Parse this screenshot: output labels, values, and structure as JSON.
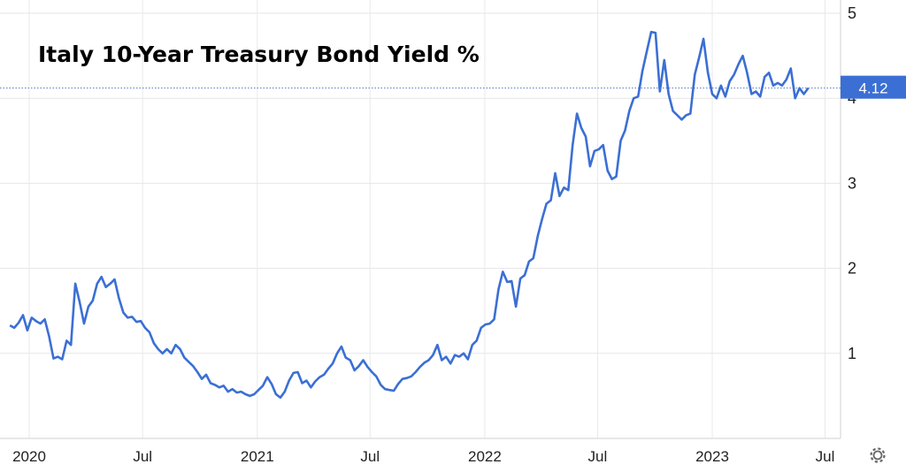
{
  "chart_data": {
    "type": "line",
    "title": "Italy 10-Year Treasury Bond Yield %",
    "xlabel": "",
    "ylabel": "",
    "x_ticks": [
      "2020",
      "Jul",
      "2021",
      "Jul",
      "2022",
      "Jul",
      "2023",
      "Jul"
    ],
    "y_ticks": [
      "1",
      "2",
      "3",
      "4",
      "5"
    ],
    "ylim": [
      0,
      5.1
    ],
    "grid": true,
    "last_value_label": "4.12",
    "series": [
      {
        "color": "#3b6fd4",
        "points": [
          [
            "2019-12-01",
            1.33
          ],
          [
            "2019-12-08",
            1.3
          ],
          [
            "2019-12-15",
            1.36
          ],
          [
            "2019-12-22",
            1.45
          ],
          [
            "2019-12-29",
            1.27
          ],
          [
            "2020-01-05",
            1.42
          ],
          [
            "2020-01-12",
            1.38
          ],
          [
            "2020-01-19",
            1.35
          ],
          [
            "2020-01-26",
            1.4
          ],
          [
            "2020-02-02",
            1.2
          ],
          [
            "2020-02-09",
            0.94
          ],
          [
            "2020-02-16",
            0.96
          ],
          [
            "2020-02-23",
            0.93
          ],
          [
            "2020-03-01",
            1.15
          ],
          [
            "2020-03-08",
            1.1
          ],
          [
            "2020-03-15",
            1.82
          ],
          [
            "2020-03-22",
            1.6
          ],
          [
            "2020-03-29",
            1.35
          ],
          [
            "2020-04-05",
            1.55
          ],
          [
            "2020-04-12",
            1.62
          ],
          [
            "2020-04-19",
            1.82
          ],
          [
            "2020-04-26",
            1.9
          ],
          [
            "2020-05-03",
            1.78
          ],
          [
            "2020-05-10",
            1.82
          ],
          [
            "2020-05-17",
            1.87
          ],
          [
            "2020-05-24",
            1.65
          ],
          [
            "2020-05-31",
            1.48
          ],
          [
            "2020-06-07",
            1.42
          ],
          [
            "2020-06-14",
            1.43
          ],
          [
            "2020-06-21",
            1.37
          ],
          [
            "2020-06-28",
            1.38
          ],
          [
            "2020-07-05",
            1.3
          ],
          [
            "2020-07-12",
            1.25
          ],
          [
            "2020-07-19",
            1.12
          ],
          [
            "2020-07-26",
            1.05
          ],
          [
            "2020-08-02",
            1.0
          ],
          [
            "2020-08-09",
            1.05
          ],
          [
            "2020-08-16",
            1.0
          ],
          [
            "2020-08-23",
            1.1
          ],
          [
            "2020-08-30",
            1.05
          ],
          [
            "2020-09-06",
            0.95
          ],
          [
            "2020-09-13",
            0.9
          ],
          [
            "2020-09-20",
            0.85
          ],
          [
            "2020-09-27",
            0.78
          ],
          [
            "2020-10-04",
            0.7
          ],
          [
            "2020-10-11",
            0.75
          ],
          [
            "2020-10-18",
            0.65
          ],
          [
            "2020-10-25",
            0.63
          ],
          [
            "2020-11-01",
            0.6
          ],
          [
            "2020-11-08",
            0.62
          ],
          [
            "2020-11-15",
            0.55
          ],
          [
            "2020-11-22",
            0.58
          ],
          [
            "2020-11-29",
            0.54
          ],
          [
            "2020-12-06",
            0.55
          ],
          [
            "2020-12-13",
            0.52
          ],
          [
            "2020-12-20",
            0.5
          ],
          [
            "2020-12-27",
            0.52
          ],
          [
            "2021-01-03",
            0.57
          ],
          [
            "2021-01-10",
            0.62
          ],
          [
            "2021-01-17",
            0.72
          ],
          [
            "2021-01-24",
            0.64
          ],
          [
            "2021-01-31",
            0.52
          ],
          [
            "2021-02-07",
            0.48
          ],
          [
            "2021-02-14",
            0.55
          ],
          [
            "2021-02-21",
            0.68
          ],
          [
            "2021-02-28",
            0.77
          ],
          [
            "2021-03-07",
            0.78
          ],
          [
            "2021-03-14",
            0.65
          ],
          [
            "2021-03-21",
            0.68
          ],
          [
            "2021-03-28",
            0.6
          ],
          [
            "2021-04-04",
            0.67
          ],
          [
            "2021-04-11",
            0.72
          ],
          [
            "2021-04-18",
            0.75
          ],
          [
            "2021-04-25",
            0.82
          ],
          [
            "2021-05-02",
            0.88
          ],
          [
            "2021-05-09",
            1.0
          ],
          [
            "2021-05-16",
            1.08
          ],
          [
            "2021-05-23",
            0.95
          ],
          [
            "2021-05-30",
            0.92
          ],
          [
            "2021-06-06",
            0.8
          ],
          [
            "2021-06-13",
            0.85
          ],
          [
            "2021-06-20",
            0.92
          ],
          [
            "2021-06-27",
            0.84
          ],
          [
            "2021-07-04",
            0.78
          ],
          [
            "2021-07-11",
            0.73
          ],
          [
            "2021-07-18",
            0.63
          ],
          [
            "2021-07-25",
            0.58
          ],
          [
            "2021-08-01",
            0.57
          ],
          [
            "2021-08-08",
            0.56
          ],
          [
            "2021-08-15",
            0.64
          ],
          [
            "2021-08-22",
            0.7
          ],
          [
            "2021-08-29",
            0.71
          ],
          [
            "2021-09-05",
            0.73
          ],
          [
            "2021-09-12",
            0.78
          ],
          [
            "2021-09-19",
            0.84
          ],
          [
            "2021-09-26",
            0.89
          ],
          [
            "2021-10-03",
            0.92
          ],
          [
            "2021-10-10",
            0.98
          ],
          [
            "2021-10-17",
            1.1
          ],
          [
            "2021-10-24",
            0.92
          ],
          [
            "2021-10-31",
            0.96
          ],
          [
            "2021-11-07",
            0.88
          ],
          [
            "2021-11-14",
            0.98
          ],
          [
            "2021-11-21",
            0.96
          ],
          [
            "2021-11-28",
            1.0
          ],
          [
            "2021-12-05",
            0.93
          ],
          [
            "2021-12-12",
            1.1
          ],
          [
            "2021-12-19",
            1.15
          ],
          [
            "2021-12-26",
            1.3
          ],
          [
            "2022-01-02",
            1.34
          ],
          [
            "2022-01-09",
            1.35
          ],
          [
            "2022-01-16",
            1.4
          ],
          [
            "2022-01-23",
            1.75
          ],
          [
            "2022-01-30",
            1.96
          ],
          [
            "2022-02-06",
            1.84
          ],
          [
            "2022-02-13",
            1.85
          ],
          [
            "2022-02-20",
            1.55
          ],
          [
            "2022-02-27",
            1.88
          ],
          [
            "2022-03-06",
            1.92
          ],
          [
            "2022-03-13",
            2.08
          ],
          [
            "2022-03-20",
            2.12
          ],
          [
            "2022-03-27",
            2.38
          ],
          [
            "2022-04-03",
            2.58
          ],
          [
            "2022-04-10",
            2.76
          ],
          [
            "2022-04-17",
            2.8
          ],
          [
            "2022-04-24",
            3.12
          ],
          [
            "2022-05-01",
            2.85
          ],
          [
            "2022-05-08",
            2.95
          ],
          [
            "2022-05-15",
            2.92
          ],
          [
            "2022-05-22",
            3.45
          ],
          [
            "2022-05-29",
            3.82
          ],
          [
            "2022-06-05",
            3.65
          ],
          [
            "2022-06-12",
            3.55
          ],
          [
            "2022-06-19",
            3.2
          ],
          [
            "2022-06-26",
            3.38
          ],
          [
            "2022-07-03",
            3.4
          ],
          [
            "2022-07-10",
            3.45
          ],
          [
            "2022-07-17",
            3.15
          ],
          [
            "2022-07-24",
            3.05
          ],
          [
            "2022-07-31",
            3.08
          ],
          [
            "2022-08-07",
            3.5
          ],
          [
            "2022-08-14",
            3.62
          ],
          [
            "2022-08-21",
            3.85
          ],
          [
            "2022-08-28",
            4.0
          ],
          [
            "2022-09-04",
            4.02
          ],
          [
            "2022-09-11",
            4.32
          ],
          [
            "2022-09-18",
            4.55
          ],
          [
            "2022-09-25",
            4.78
          ],
          [
            "2022-10-02",
            4.77
          ],
          [
            "2022-10-09",
            4.08
          ],
          [
            "2022-10-16",
            4.45
          ],
          [
            "2022-10-23",
            4.05
          ],
          [
            "2022-10-30",
            3.85
          ],
          [
            "2022-11-06",
            3.8
          ],
          [
            "2022-11-13",
            3.75
          ],
          [
            "2022-11-20",
            3.8
          ],
          [
            "2022-11-27",
            3.82
          ],
          [
            "2022-12-04",
            4.28
          ],
          [
            "2022-12-11",
            4.48
          ],
          [
            "2022-12-18",
            4.7
          ],
          [
            "2022-12-25",
            4.3
          ],
          [
            "2023-01-01",
            4.05
          ],
          [
            "2023-01-08",
            4.0
          ],
          [
            "2023-01-15",
            4.15
          ],
          [
            "2023-01-22",
            4.02
          ],
          [
            "2023-01-29",
            4.2
          ],
          [
            "2023-02-05",
            4.28
          ],
          [
            "2023-02-12",
            4.4
          ],
          [
            "2023-02-19",
            4.5
          ],
          [
            "2023-02-26",
            4.3
          ],
          [
            "2023-03-05",
            4.05
          ],
          [
            "2023-03-12",
            4.08
          ],
          [
            "2023-03-19",
            4.02
          ],
          [
            "2023-03-26",
            4.25
          ],
          [
            "2023-04-02",
            4.3
          ],
          [
            "2023-04-09",
            4.15
          ],
          [
            "2023-04-16",
            4.18
          ],
          [
            "2023-04-23",
            4.15
          ],
          [
            "2023-04-30",
            4.22
          ],
          [
            "2023-05-07",
            4.35
          ],
          [
            "2023-05-14",
            4.0
          ],
          [
            "2023-05-21",
            4.12
          ],
          [
            "2023-05-28",
            4.05
          ],
          [
            "2023-06-04",
            4.12
          ]
        ]
      }
    ]
  },
  "ui": {
    "settings_icon": "gear-icon"
  }
}
